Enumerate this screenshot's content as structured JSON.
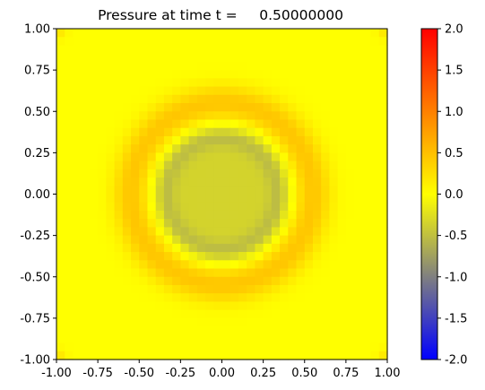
{
  "chart_data": {
    "type": "heatmap",
    "title": "Pressure at time t =     0.50000000",
    "xlabel": "",
    "ylabel": "",
    "xlim": [
      -1.0,
      1.0
    ],
    "ylim": [
      -1.0,
      1.0
    ],
    "grid": false,
    "x_ticks": [
      "-1.00",
      "-0.75",
      "-0.50",
      "-0.25",
      "0.00",
      "0.25",
      "0.50",
      "0.75",
      "1.00"
    ],
    "y_ticks": [
      "-1.00",
      "-0.75",
      "-0.50",
      "-0.25",
      "0.00",
      "0.25",
      "0.50",
      "0.75",
      "1.00"
    ],
    "resolution": 40,
    "field": {
      "shape": "radial",
      "center": [
        0.0,
        0.0
      ],
      "background_value": 0.0,
      "interior_value": -0.35,
      "ring_radius": 0.34,
      "ring_value": -0.85,
      "positive_ring_radius": 0.55,
      "positive_ring_value": 0.45
    },
    "colorbar": {
      "min": -2.0,
      "max": 2.0,
      "ticks": [
        "2.0",
        "1.5",
        "1.0",
        "0.5",
        "0.0",
        "-0.5",
        "-1.0",
        "-1.5",
        "-2.0"
      ],
      "colors": [
        {
          "value": -2.0,
          "color": "#0000ff"
        },
        {
          "value": -1.0,
          "color": "#808080"
        },
        {
          "value": 0.0,
          "color": "#ffff00"
        },
        {
          "value": 1.0,
          "color": "#ff8000"
        },
        {
          "value": 2.0,
          "color": "#ff0000"
        }
      ]
    }
  }
}
